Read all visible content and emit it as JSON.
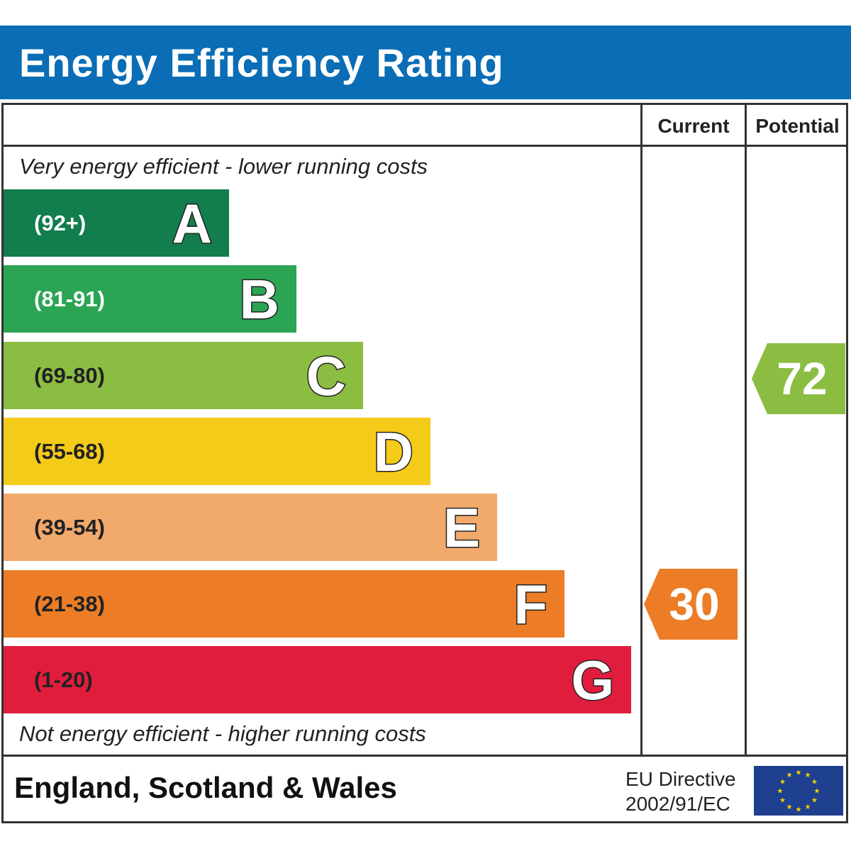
{
  "header": {
    "title": "Energy Efficiency Rating"
  },
  "columns": {
    "current": "Current",
    "potential": "Potential"
  },
  "captions": {
    "top": "Very energy efficient - lower running costs",
    "bottom": "Not energy efficient - higher running costs"
  },
  "chart_data": {
    "type": "bar",
    "categories": [
      "A",
      "B",
      "C",
      "D",
      "E",
      "F",
      "G"
    ],
    "ranges": [
      "(92+)",
      "(81-91)",
      "(69-80)",
      "(55-68)",
      "(39-54)",
      "(21-38)",
      "(1-20)"
    ],
    "range_min": [
      92,
      81,
      69,
      55,
      39,
      21,
      1
    ],
    "range_max": [
      100,
      91,
      80,
      68,
      54,
      38,
      20
    ],
    "colors": [
      "#127d4d",
      "#2ba454",
      "#8cbd43",
      "#f5cb1a",
      "#f2a96c",
      "#ec7d26",
      "#e11d3e"
    ],
    "range_text_colors": [
      "#ffffff",
      "#ffffff",
      "#222222",
      "#222222",
      "#222222",
      "#222222",
      "#222222"
    ],
    "current": {
      "value": 30,
      "band": "F",
      "color": "#ec7d26"
    },
    "potential": {
      "value": 72,
      "band": "C",
      "color": "#8cbd43"
    }
  },
  "footer": {
    "region": "England, Scotland & Wales",
    "directive_line1": "EU Directive",
    "directive_line2": "2002/91/EC",
    "flag_color": "#1f3f8f",
    "star_color": "#f5d300"
  }
}
